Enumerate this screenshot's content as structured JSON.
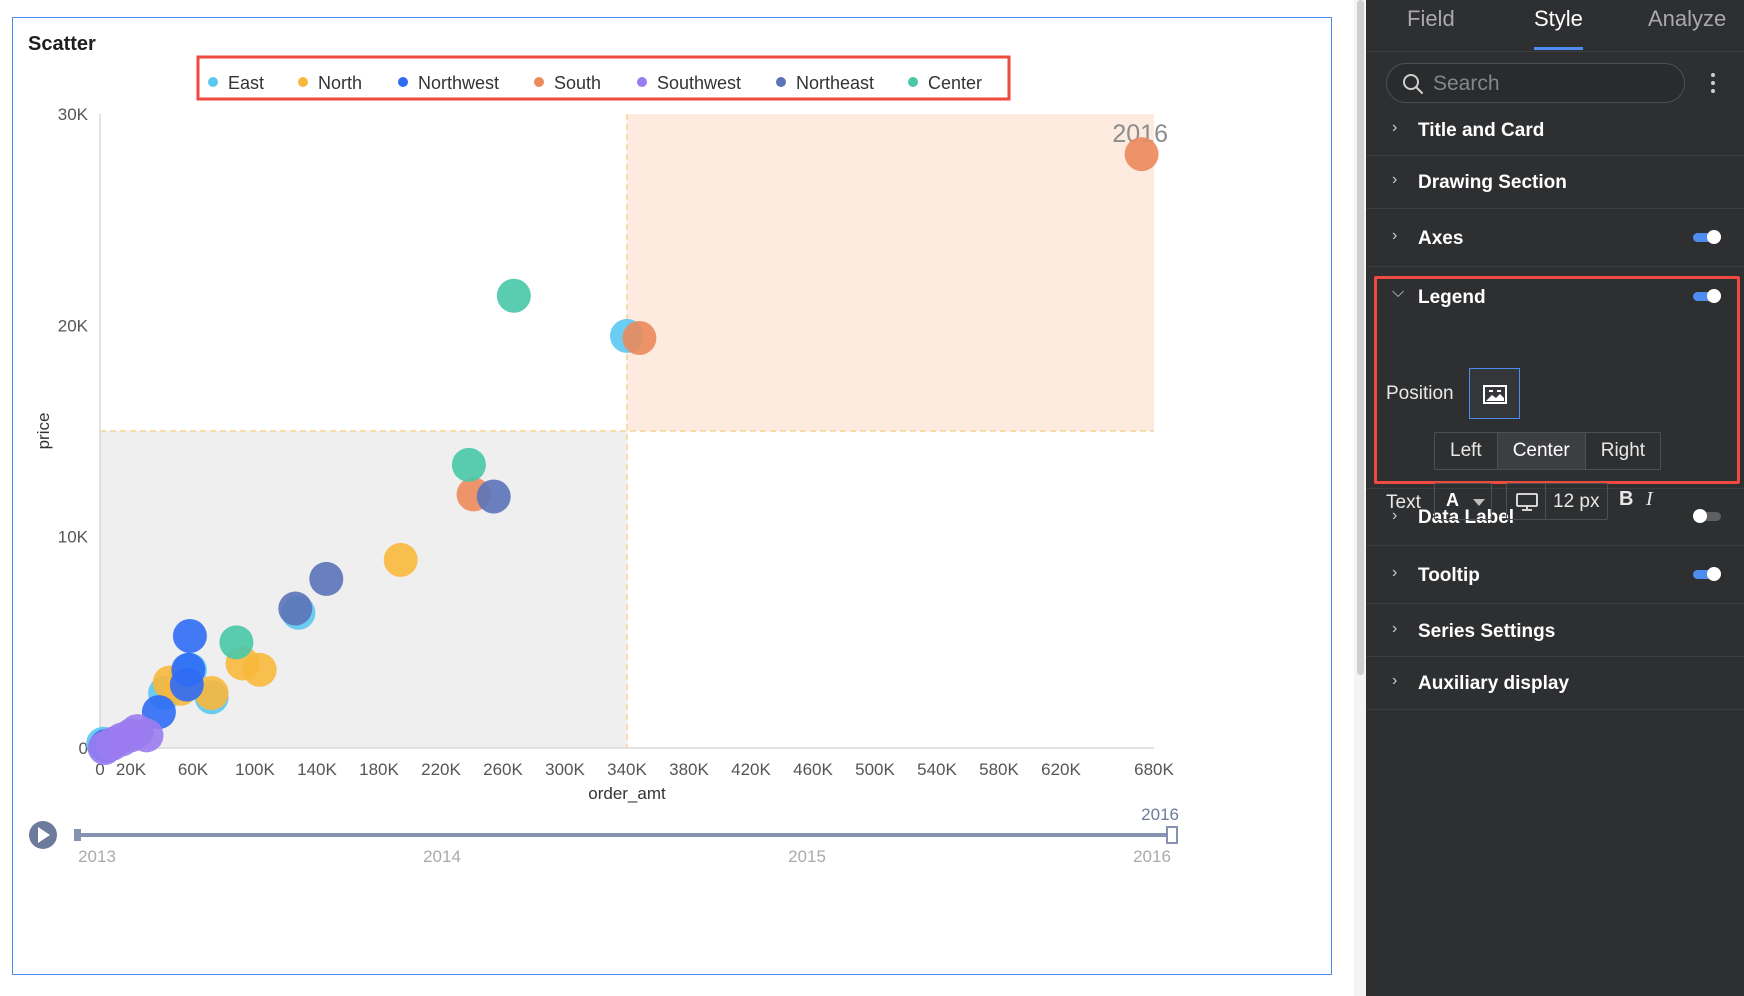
{
  "chart_title": "Scatter",
  "legend_items": [
    {
      "label": "East",
      "color": "#5bc8f0"
    },
    {
      "label": "North",
      "color": "#f8b83c"
    },
    {
      "label": "Northwest",
      "color": "#2f6bf5"
    },
    {
      "label": "South",
      "color": "#ec8a5c"
    },
    {
      "label": "Southwest",
      "color": "#9a7cf0"
    },
    {
      "label": "Northeast",
      "color": "#5b73b8"
    },
    {
      "label": "Center",
      "color": "#48c8a8"
    }
  ],
  "chart_data": {
    "type": "scatter",
    "title": "Scatter",
    "xlabel": "order_amt",
    "ylabel": "price",
    "xlim": [
      0,
      680000
    ],
    "ylim": [
      0,
      30000
    ],
    "x_ticks": [
      "0",
      "20K",
      "60K",
      "100K",
      "140K",
      "180K",
      "220K",
      "260K",
      "300K",
      "340K",
      "380K",
      "420K",
      "460K",
      "500K",
      "540K",
      "580K",
      "620K",
      "680K"
    ],
    "x_tick_values": [
      0,
      20000,
      60000,
      100000,
      140000,
      180000,
      220000,
      260000,
      300000,
      340000,
      380000,
      420000,
      460000,
      500000,
      540000,
      580000,
      620000,
      680000
    ],
    "y_ticks": [
      "0",
      "10K",
      "20K",
      "30K"
    ],
    "y_tick_values": [
      0,
      10000,
      20000,
      30000
    ],
    "frame_label": "2016",
    "quadrant_split": {
      "x": 340000,
      "y": 15000
    },
    "legend_position": "top-center",
    "series": [
      {
        "name": "East",
        "points": [
          [
            2000,
            200
          ],
          [
            42000,
            2600
          ],
          [
            54000,
            3100
          ],
          [
            58000,
            3700
          ],
          [
            72000,
            2400
          ],
          [
            128000,
            6400
          ],
          [
            340000,
            19500
          ]
        ]
      },
      {
        "name": "North",
        "points": [
          [
            45000,
            3100
          ],
          [
            52000,
            2800
          ],
          [
            72000,
            2600
          ],
          [
            92000,
            4000
          ],
          [
            103000,
            3700
          ],
          [
            194000,
            8900
          ]
        ]
      },
      {
        "name": "Northwest",
        "points": [
          [
            4000,
            100
          ],
          [
            38000,
            1700
          ],
          [
            56000,
            3000
          ],
          [
            57000,
            3700
          ],
          [
            58000,
            5300
          ]
        ]
      },
      {
        "name": "South",
        "points": [
          [
            241000,
            12000
          ],
          [
            348000,
            19400
          ],
          [
            672000,
            28100
          ]
        ]
      },
      {
        "name": "Southwest",
        "points": [
          [
            3000,
            0
          ],
          [
            8000,
            200
          ],
          [
            14000,
            400
          ],
          [
            20000,
            600
          ],
          [
            24000,
            800
          ],
          [
            30000,
            600
          ]
        ]
      },
      {
        "name": "Northeast",
        "points": [
          [
            126000,
            6600
          ],
          [
            146000,
            8000
          ],
          [
            254000,
            11900
          ]
        ]
      },
      {
        "name": "Center",
        "points": [
          [
            88000,
            5000
          ],
          [
            238000,
            13400
          ],
          [
            267000,
            21400
          ]
        ]
      }
    ]
  },
  "timeline": {
    "current": "2016",
    "labels": [
      "2013",
      "2014",
      "2015",
      "2016"
    ]
  },
  "panel": {
    "tabs": [
      "Field",
      "Style",
      "Analyze"
    ],
    "active_tab": "Style",
    "search_placeholder": "Search",
    "sections": {
      "title_card": "Title and Card",
      "drawing": "Drawing Section",
      "axes": "Axes",
      "legend": "Legend",
      "data_label": "Data Label",
      "tooltip": "Tooltip",
      "series": "Series Settings",
      "auxiliary": "Auxiliary display"
    },
    "toggles": {
      "axes": true,
      "legend": true,
      "data_label": false,
      "tooltip": true
    },
    "legend_settings": {
      "position_label": "Position",
      "alignment": [
        "Left",
        "Center",
        "Right"
      ],
      "alignment_selected": "Center",
      "text_label": "Text",
      "font_color_glyph": "A",
      "font_size": "12 px",
      "bold_glyph": "B",
      "italic_glyph": "I"
    },
    "accent": "#4f8cf0",
    "highlight": "#ef4a3f"
  }
}
